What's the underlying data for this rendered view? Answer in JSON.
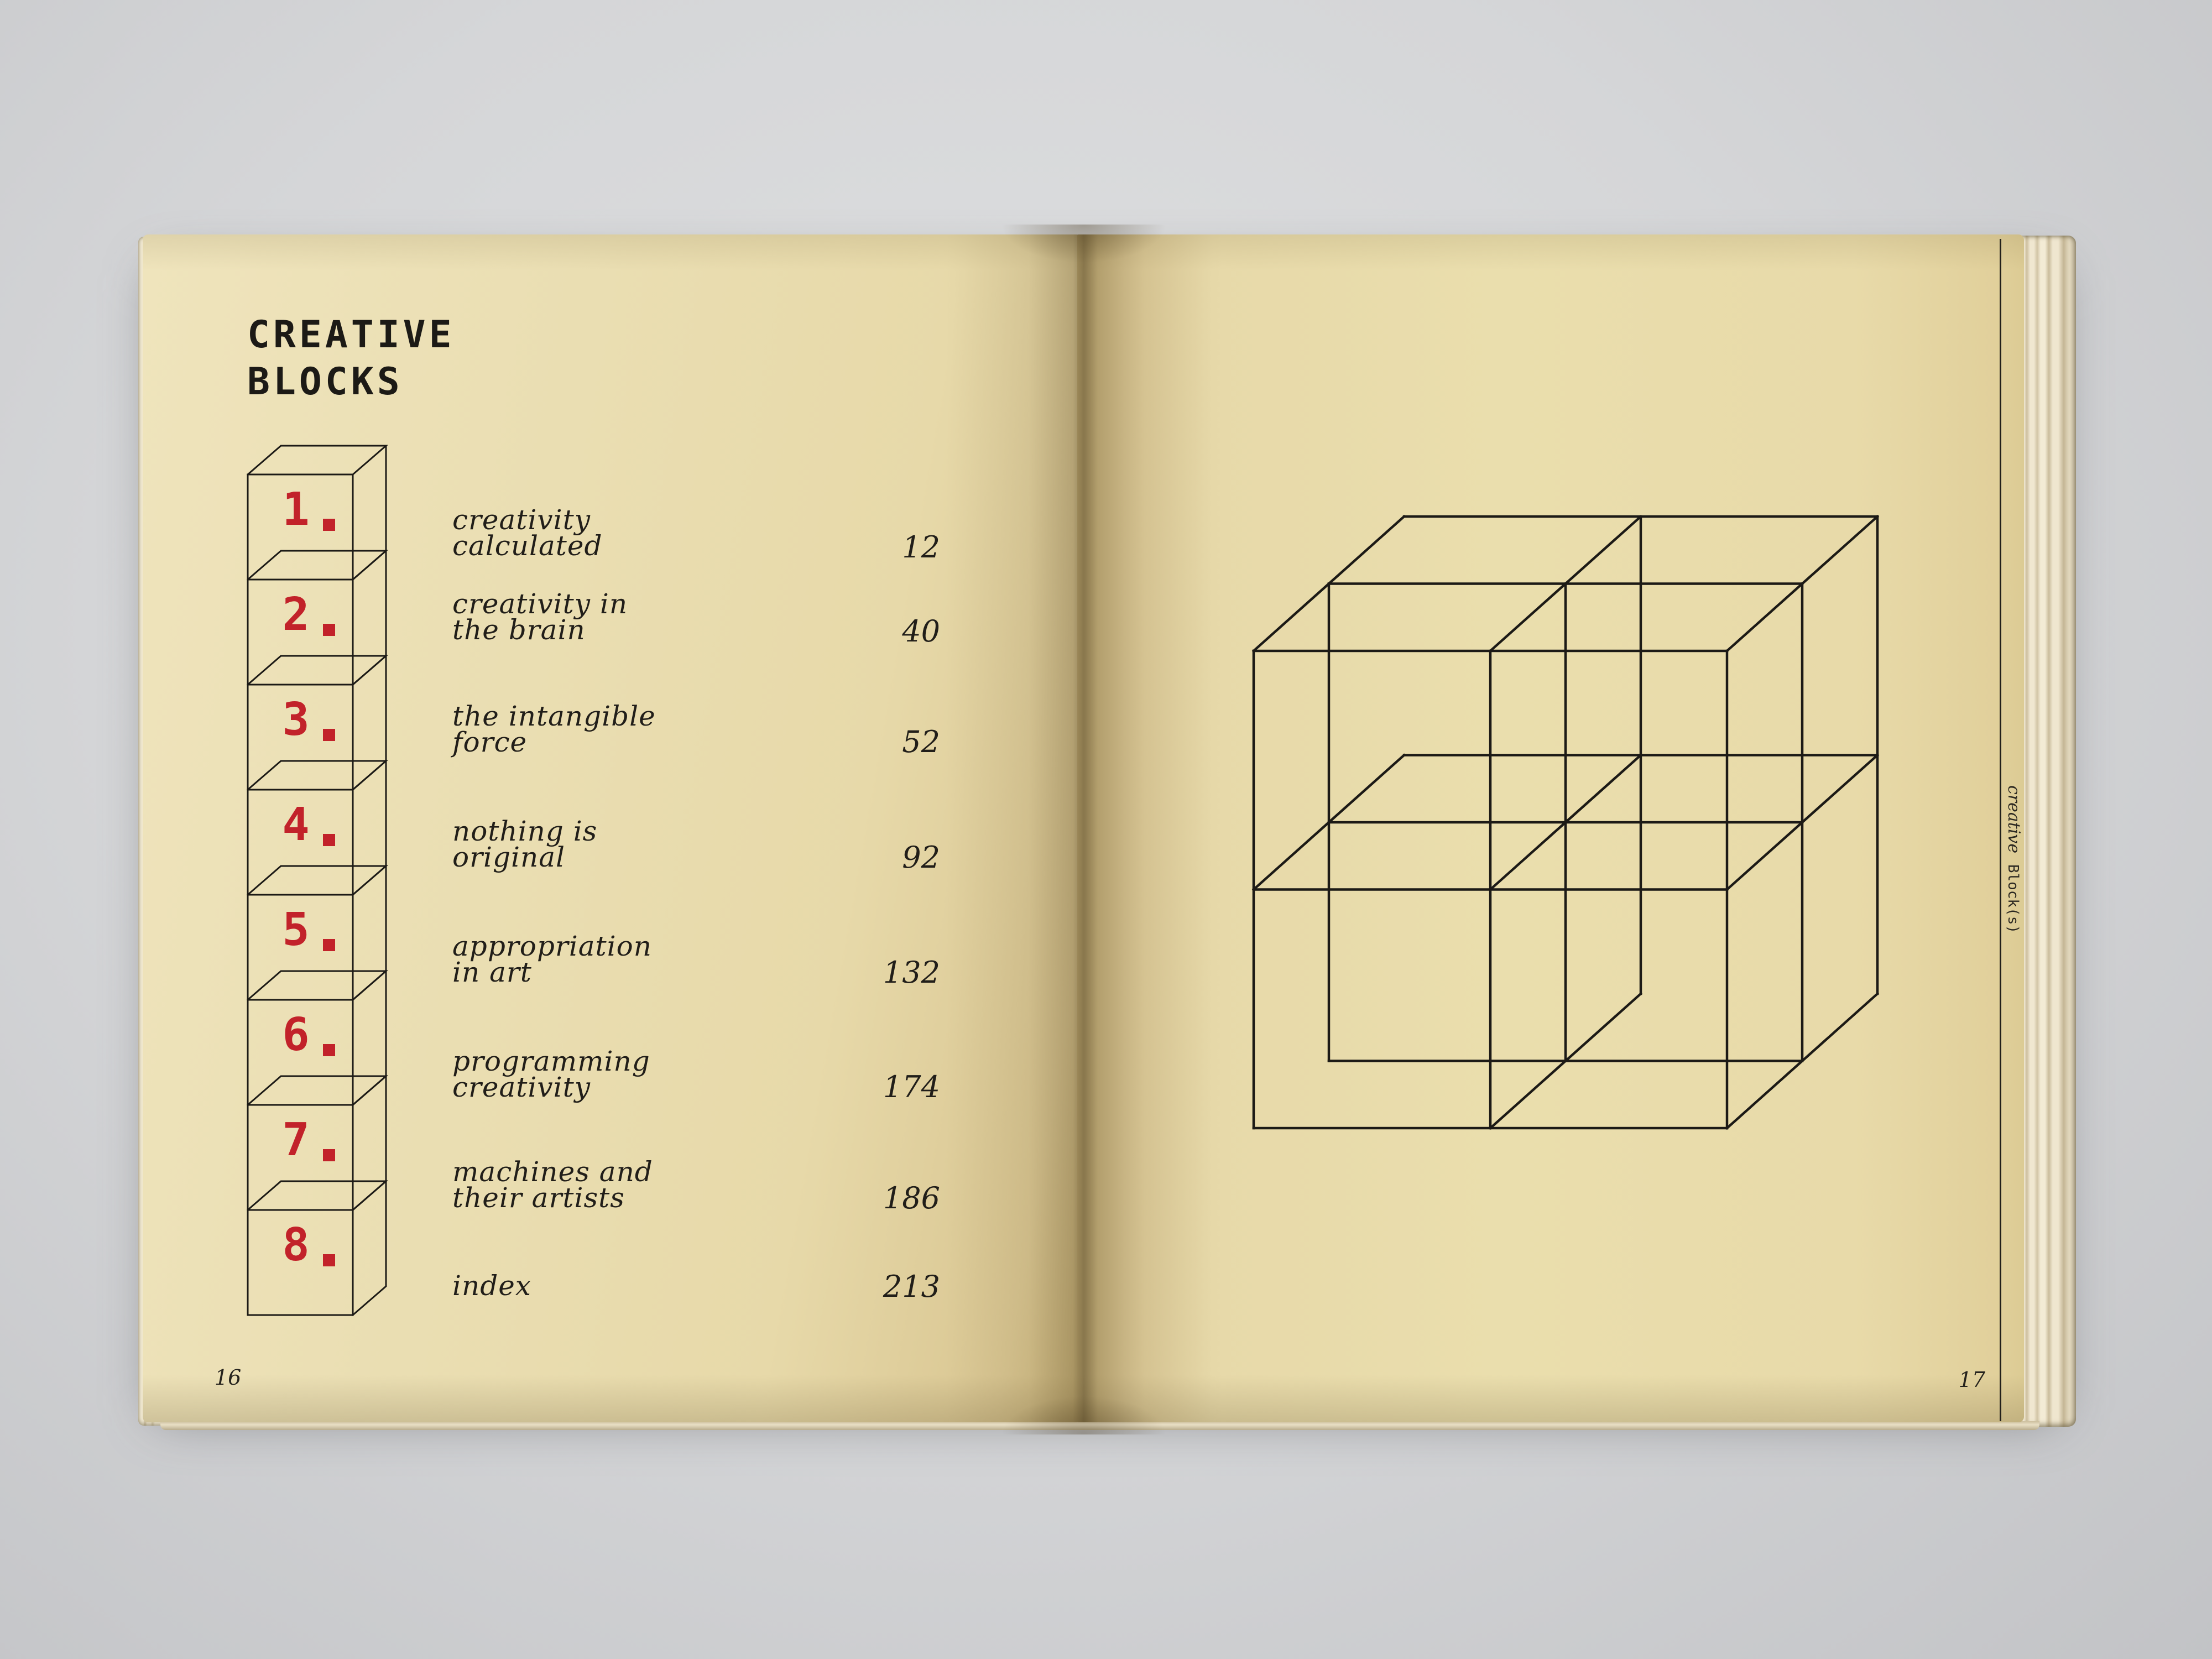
{
  "book": {
    "title_lines": [
      "CREATIVE",
      "BLOCKS"
    ],
    "toc": [
      {
        "num": "1",
        "title_lines": [
          "creativity",
          "calculated"
        ],
        "page": "12"
      },
      {
        "num": "2",
        "title_lines": [
          "creativity in",
          "the brain"
        ],
        "page": "40"
      },
      {
        "num": "3",
        "title_lines": [
          "the intangible",
          "force"
        ],
        "page": "52"
      },
      {
        "num": "4",
        "title_lines": [
          "nothing is",
          "original"
        ],
        "page": "92"
      },
      {
        "num": "5",
        "title_lines": [
          "appropriation",
          "in art"
        ],
        "page": "132"
      },
      {
        "num": "6",
        "title_lines": [
          "programming",
          "creativity"
        ],
        "page": "174"
      },
      {
        "num": "7",
        "title_lines": [
          "machines and",
          "their artists"
        ],
        "page": "186"
      },
      {
        "num": "8",
        "title_lines": [
          "index"
        ],
        "page": "213"
      }
    ],
    "left_folio": "16",
    "right_folio": "17",
    "spine_text": {
      "italic_part": "creative",
      "mono_part": "Block(s)"
    }
  },
  "colors": {
    "paper": "#eadeb2",
    "ink": "#1c1a16",
    "accent_red": "#c2222a",
    "background_gray": "#d5d6d8"
  },
  "figures": {
    "block_stack": {
      "name": "stack of 8 numbered wireframe blocks",
      "count": 8
    },
    "grid_cube": {
      "name": "2x2x2 subdivided wireframe cube",
      "divisions": 2
    }
  }
}
